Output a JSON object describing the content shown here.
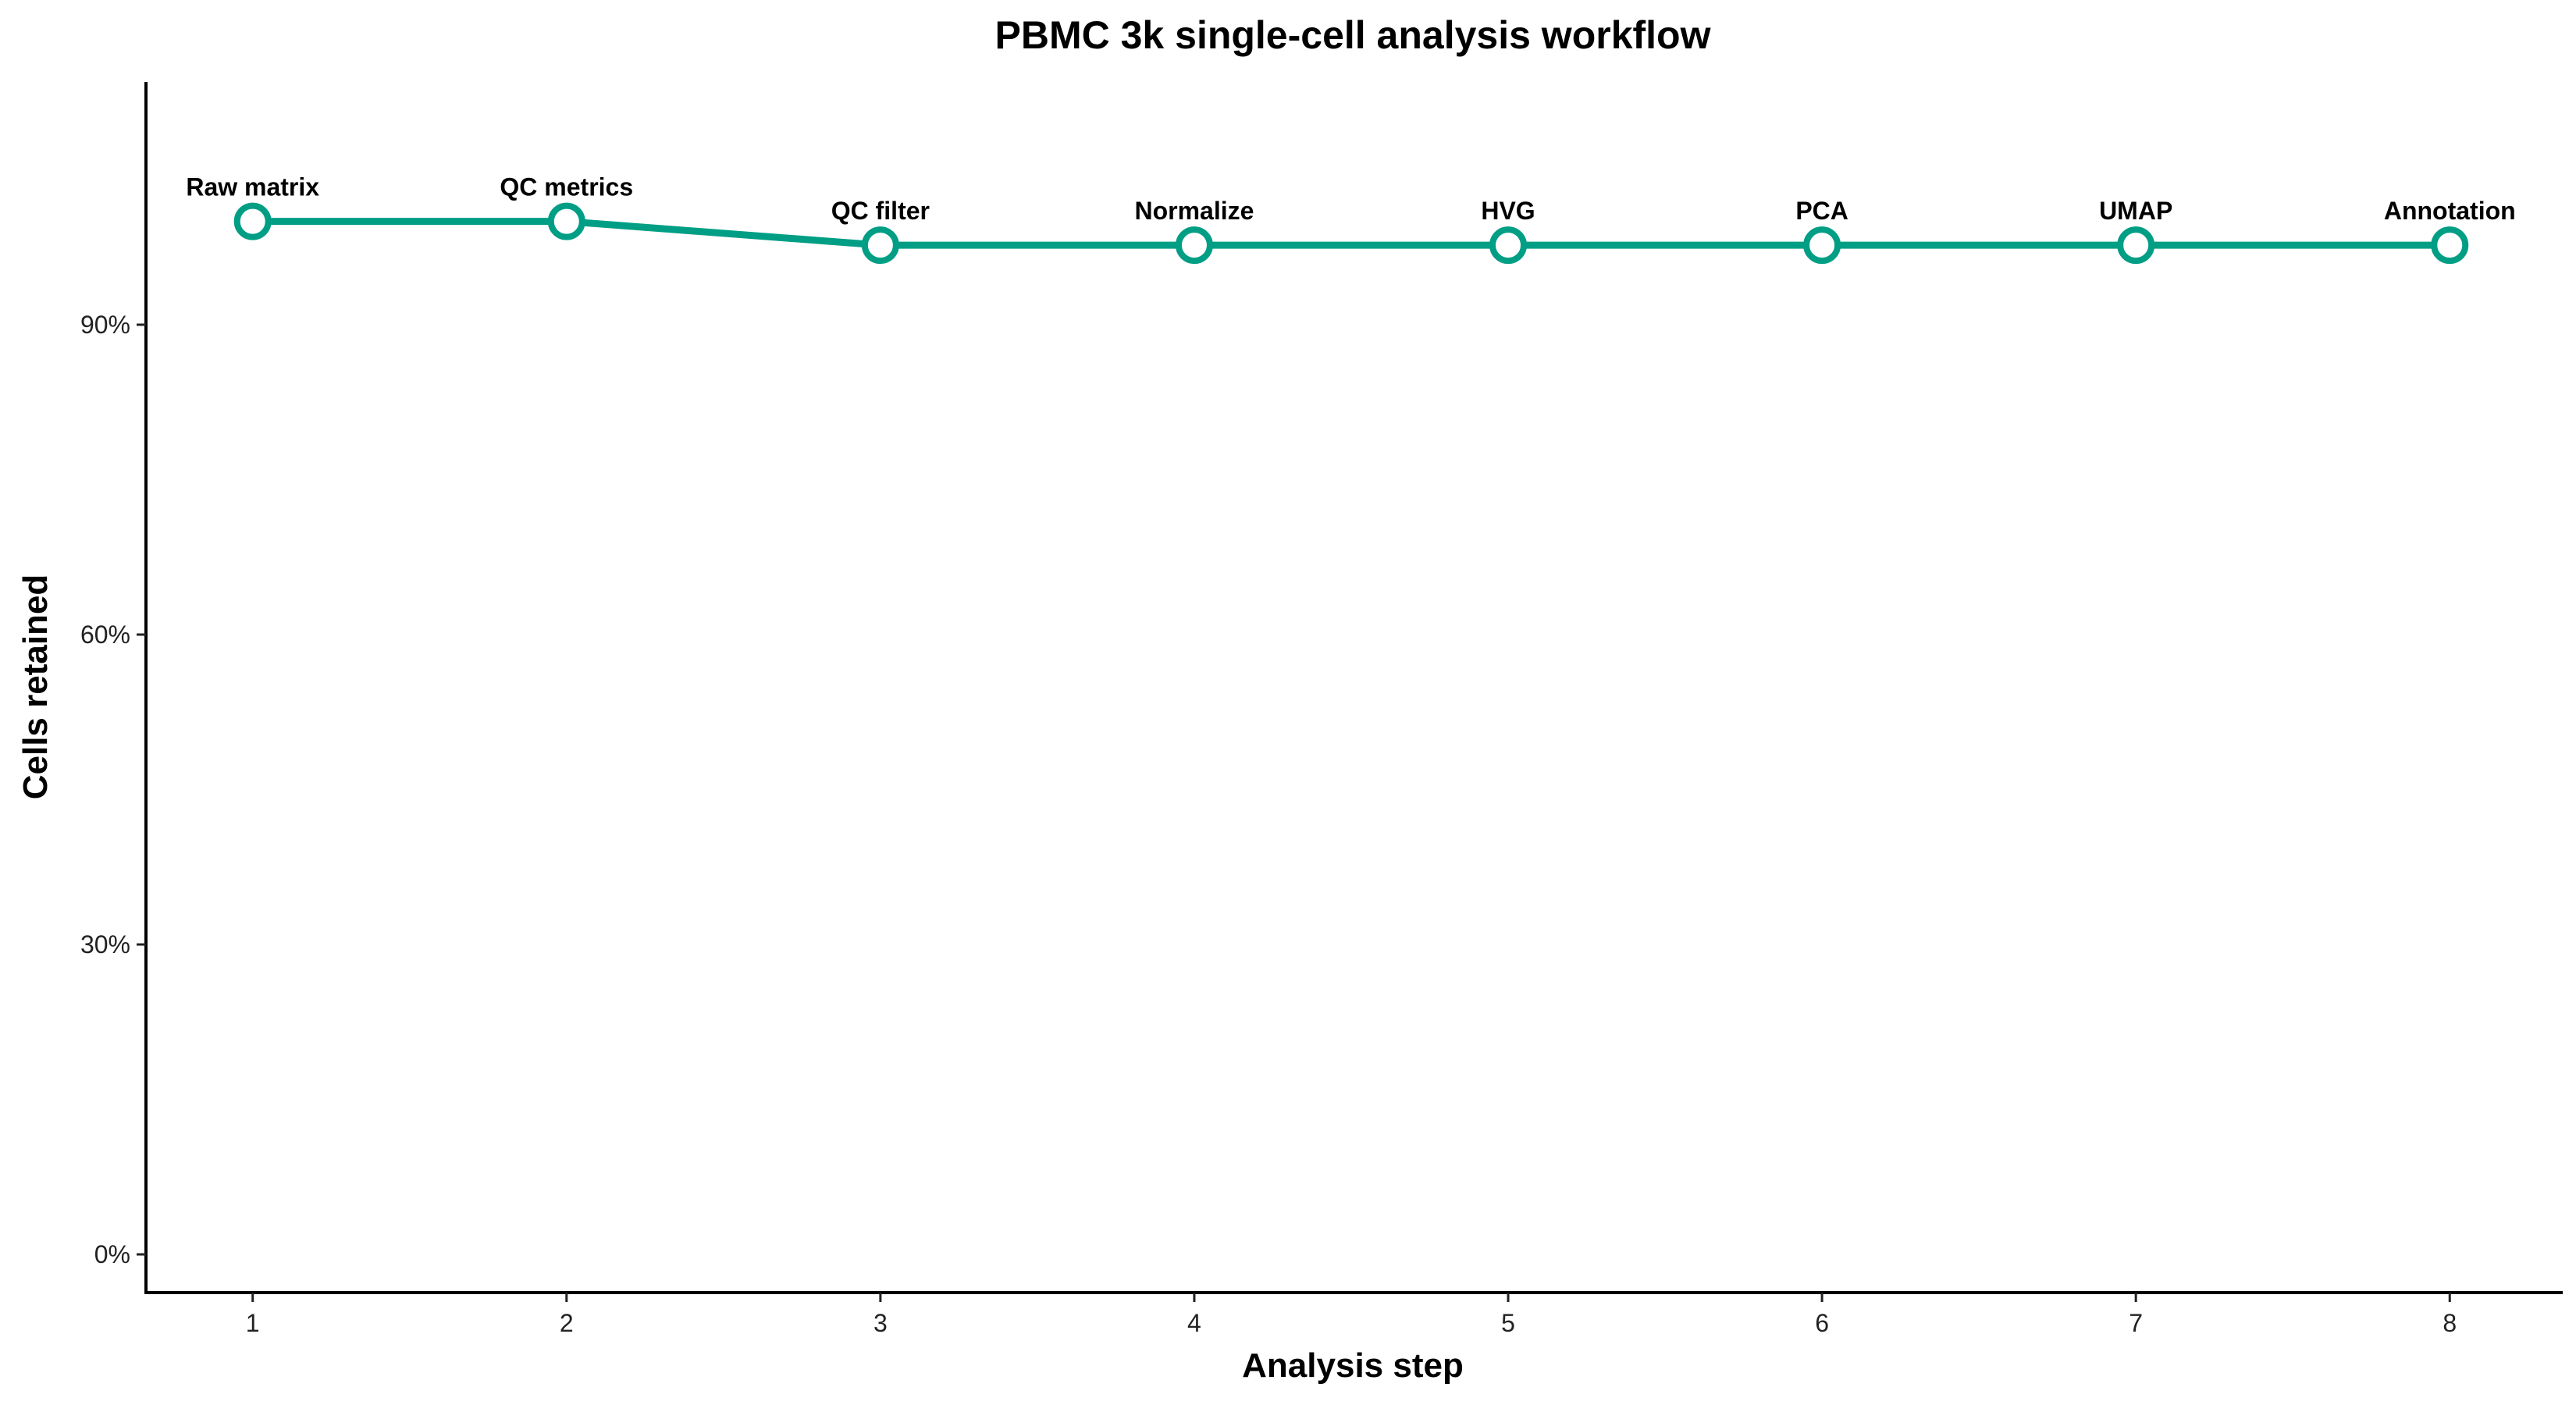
{
  "chart_data": {
    "type": "line",
    "title": "PBMC 3k single-cell analysis workflow",
    "xlabel": "Analysis step",
    "ylabel": "Cells retained",
    "x": [
      1,
      2,
      3,
      4,
      5,
      6,
      7,
      8
    ],
    "xlim": [
      0.66,
      8.36
    ],
    "ylim": [
      -3.7,
      113.5
    ],
    "yticks": [
      0,
      30,
      60,
      90
    ],
    "ytick_labels": [
      "0%",
      "30%",
      "60%",
      "90%"
    ],
    "xtick_labels": [
      "1",
      "2",
      "3",
      "4",
      "5",
      "6",
      "7",
      "8"
    ],
    "series": [
      {
        "values": [
          100,
          100,
          97.7,
          97.7,
          97.7,
          97.7,
          97.7,
          97.7
        ],
        "point_labels": [
          "Raw matrix",
          "QC metrics",
          "QC filter",
          "Normalize",
          "HVG",
          "PCA",
          "UMAP",
          "Annotation"
        ],
        "color": "#009E84"
      }
    ],
    "grid": false,
    "legend": "none"
  }
}
